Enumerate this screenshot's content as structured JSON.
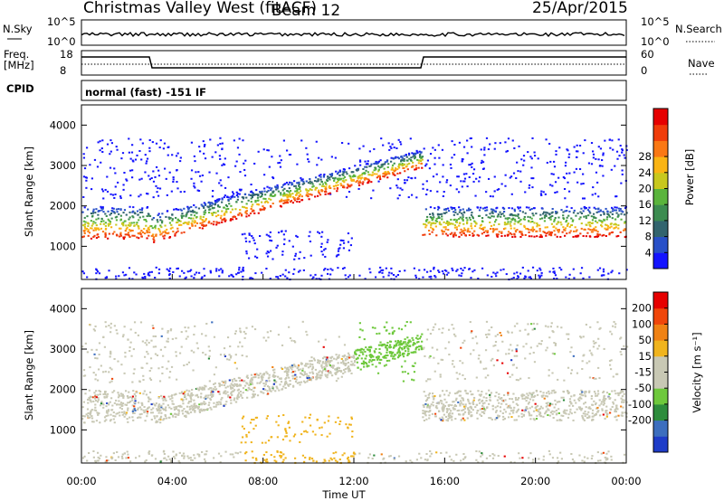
{
  "header": {
    "station": "Christmas Valley West (fitACF)",
    "beam": "Beam 12",
    "date": "25/Apr/2015"
  },
  "panels": {
    "nsky": {
      "label": "N.Sky",
      "ticks": [
        "10^5",
        "10^0"
      ],
      "right_label": "N.Search",
      "right_ticks": [
        "10^5",
        "10^0"
      ]
    },
    "freq": {
      "label_line1": "Freq.",
      "label_line2": "[MHz]",
      "ticks": [
        "18",
        "8"
      ],
      "right_label": "Nave",
      "right_ticks": [
        "60",
        "0"
      ]
    },
    "cpid": {
      "label": "CPID",
      "text": "normal (fast) -151 IF"
    }
  },
  "chart_data": [
    {
      "type": "heatmap",
      "name": "power",
      "ylabel": "Slant Range [km]",
      "ylim": [
        180,
        4500
      ],
      "yticks": [
        1000,
        2000,
        3000,
        4000
      ],
      "colorbar": {
        "label": "Power [dB]",
        "ticks": [
          "4",
          "8",
          "12",
          "16",
          "20",
          "24",
          "28"
        ],
        "colors": [
          "#1414ff",
          "#2850c8",
          "#32646e",
          "#3c8c50",
          "#5ab43c",
          "#c8c81e",
          "#fab414",
          "#fa7814",
          "#f03c0a",
          "#e60000"
        ]
      }
    },
    {
      "type": "heatmap",
      "name": "velocity",
      "ylabel": "Slant Range [km]",
      "ylim": [
        180,
        4500
      ],
      "yticks": [
        1000,
        2000,
        3000,
        4000
      ],
      "colorbar": {
        "label": "Velocity [m s⁻¹]",
        "ticks": [
          "200",
          "100",
          "50",
          "15",
          "-15",
          "-50",
          "-100",
          "-200"
        ],
        "colors": [
          "#1e3cc8",
          "#3c6ebe",
          "#2d8c3c",
          "#6ec83c",
          "#c8c8b4",
          "#c8c8b4",
          "#f0b41e",
          "#f08214",
          "#f0460a",
          "#e60000"
        ]
      }
    }
  ],
  "xaxis": {
    "label": "Time UT",
    "ticks": [
      "00:00",
      "04:00",
      "08:00",
      "12:00",
      "16:00",
      "20:00",
      "00:00"
    ]
  }
}
